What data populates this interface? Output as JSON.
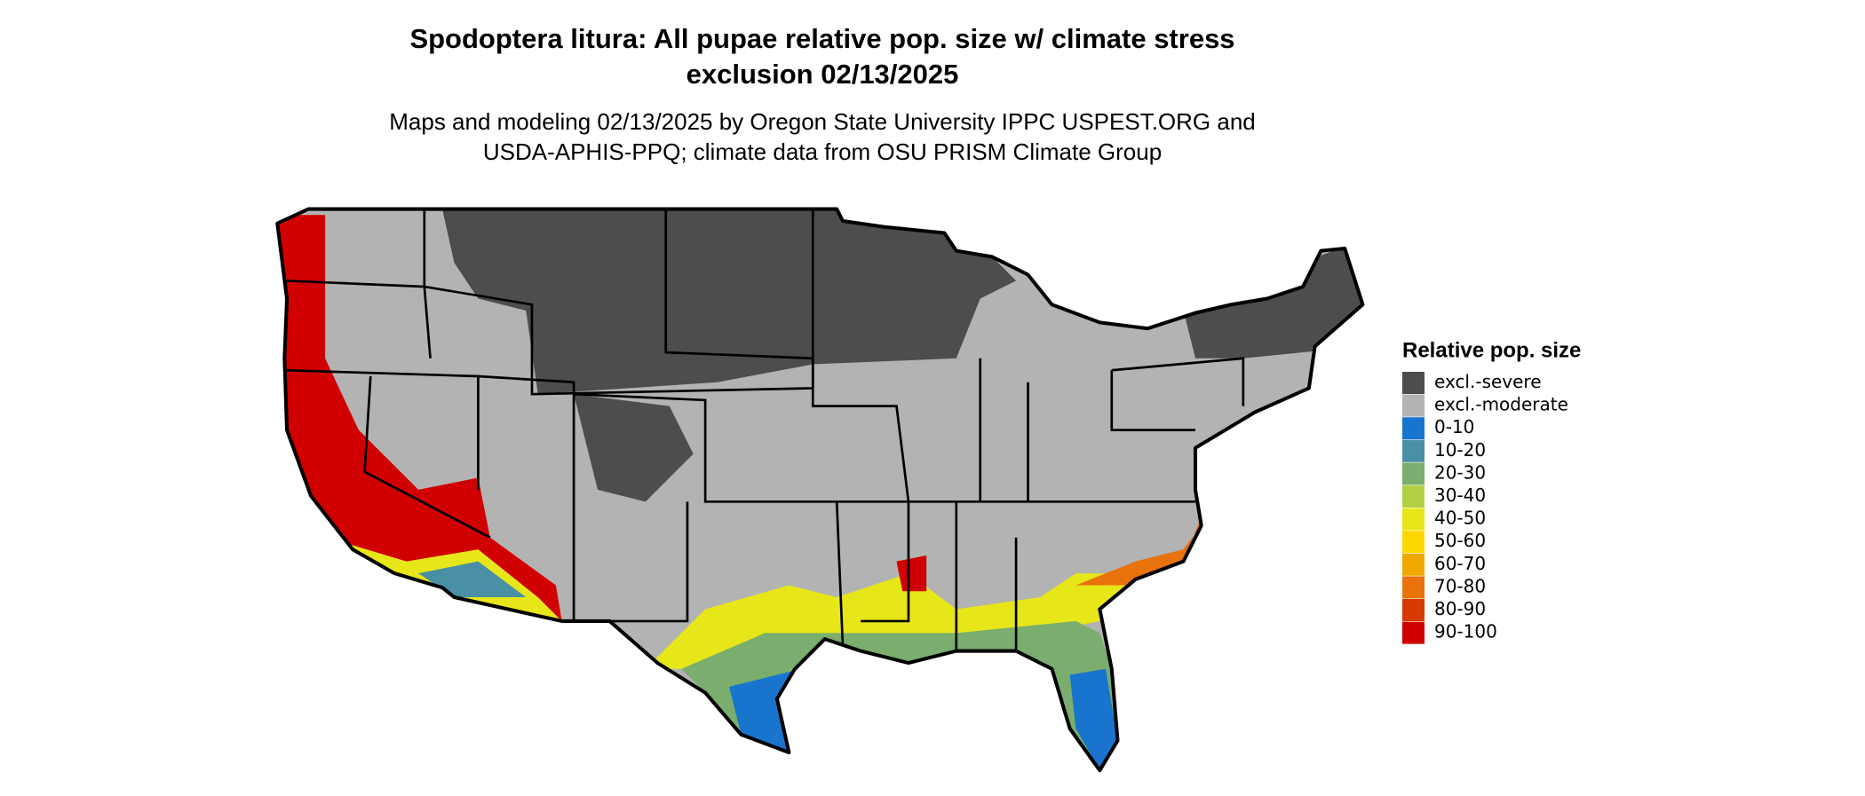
{
  "title": [
    "Spodoptera litura: All pupae relative pop. size w/ climate stress",
    "exclusion 02/13/2025"
  ],
  "subtitle": [
    "Maps and modeling 02/13/2025 by Oregon State University IPPC USPEST.ORG and",
    "USDA-APHIS-PPQ; climate data from OSU PRISM Climate Group"
  ],
  "legend": {
    "title": "Relative pop. size",
    "items": [
      {
        "label": "excl.-severe",
        "color": "#4d4d4d"
      },
      {
        "label": "excl.-moderate",
        "color": "#b3b3b3"
      },
      {
        "label": "0-10",
        "color": "#1874cd"
      },
      {
        "label": "10-20",
        "color": "#4a90a4"
      },
      {
        "label": "20-30",
        "color": "#7aad6e"
      },
      {
        "label": "30-40",
        "color": "#b2d045"
      },
      {
        "label": "40-50",
        "color": "#e6e619"
      },
      {
        "label": "50-60",
        "color": "#ffd700"
      },
      {
        "label": "60-70",
        "color": "#f0a800"
      },
      {
        "label": "70-80",
        "color": "#e8720c"
      },
      {
        "label": "80-90",
        "color": "#d63a00"
      },
      {
        "label": "90-100",
        "color": "#d10000"
      }
    ]
  }
}
